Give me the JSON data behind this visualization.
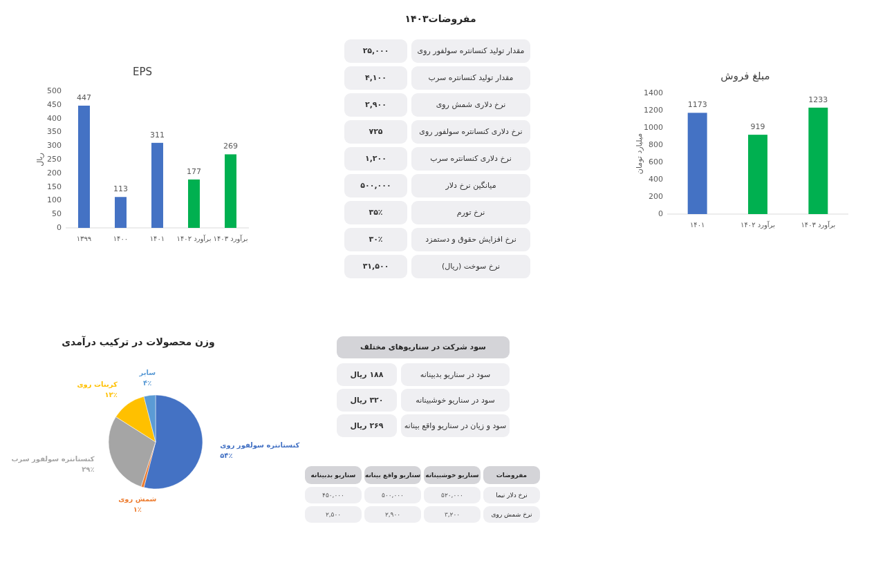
{
  "chart_data": [
    {
      "type": "bar",
      "title": "EPS",
      "ylabel": "ریال",
      "categories": [
        "۱۳۹۹",
        "۱۴۰۰",
        "۱۴۰۱",
        "برآورد ۱۴۰۲",
        "برآورد ۱۴۰۳"
      ],
      "values": [
        447,
        113,
        311,
        177,
        269
      ],
      "colors": [
        "#4472c4",
        "#4472c4",
        "#4472c4",
        "#00b050",
        "#00b050"
      ],
      "ylim": [
        0,
        500
      ],
      "yticks": [
        0,
        50,
        100,
        150,
        200,
        250,
        300,
        350,
        400,
        450,
        500
      ],
      "data_labels": true
    },
    {
      "type": "other",
      "title": "مفروضات۱۴۰۳",
      "categories": [
        "مقدار تولید کنسانتره سولفور روی",
        "مقدار تولید کنسانتره سرب",
        "نرخ دلاری شمش روی",
        "نرخ دلاری کنسانتره سولفور روی",
        "نرخ دلاری کنسانتره سرب",
        "میانگین نرخ دلار",
        "نرخ تورم",
        "نرخ افزایش حقوق و دستمزد",
        "نرخ سوخت (ریال)"
      ],
      "value_labels": [
        "۲۵,۰۰۰",
        "۴,۱۰۰",
        "۲,۹۰۰",
        "۷۲۵",
        "۱,۲۰۰",
        "۵۰۰,۰۰۰",
        "۳۵٪",
        "۳۰٪",
        "۳۱,۵۰۰"
      ]
    },
    {
      "type": "bar",
      "title": "مبلغ فروش",
      "ylabel": "میلیارد تومان",
      "categories": [
        "۱۴۰۱",
        "برآورد ۱۴۰۲",
        "برآورد ۱۴۰۳"
      ],
      "values": [
        1173,
        919,
        1233
      ],
      "colors": [
        "#4472c4",
        "#00b050",
        "#00b050"
      ],
      "ylim": [
        0,
        1400
      ],
      "yticks": [
        0,
        200,
        400,
        600,
        800,
        1000,
        1200,
        1400
      ],
      "data_labels": true
    },
    {
      "type": "pie",
      "title": "وزن محصولات در ترکیب درآمدی",
      "categories": [
        "کنستانتره سولفور روی",
        "شمش روی",
        "کنستانتره سولفور سرب",
        "کربنات روی",
        "سایر"
      ],
      "values": [
        54,
        1,
        29,
        12,
        4
      ],
      "value_labels": [
        "۵۴٪",
        "۱٪",
        "۲۹٪",
        "۱۲٪",
        "۴٪"
      ],
      "colors": [
        "#4472c4",
        "#ed7d31",
        "#a5a5a5",
        "#ffc000",
        "#5b9bd5"
      ]
    },
    {
      "type": "other",
      "title": "سود شرکت در سناریوهای مختلف",
      "categories": [
        "سود در سناریو بدبینانه",
        "سود در سناریو خوشبینانه",
        "سود و زیان در سناریو واقع بینانه"
      ],
      "value_labels": [
        "۱۸۸ ریال",
        "۳۲۰ ریال",
        "۲۶۹ ریال"
      ]
    },
    {
      "type": "other",
      "y2label": "مفروضات",
      "categories": [
        "سناریو بدبینانه",
        "سناریو واقع بینانه",
        "سناریو خوشبینانه"
      ],
      "y2_categories": [
        "نرخ دلار نیما",
        "نرخ شمش روی"
      ],
      "cell_labels": [
        [
          "۴۵۰,۰۰۰",
          "۵۰۰,۰۰۰",
          "۵۲۰,۰۰۰"
        ],
        [
          "۲,۵۰۰",
          "۲,۹۰۰",
          "۳,۲۰۰"
        ]
      ]
    }
  ]
}
